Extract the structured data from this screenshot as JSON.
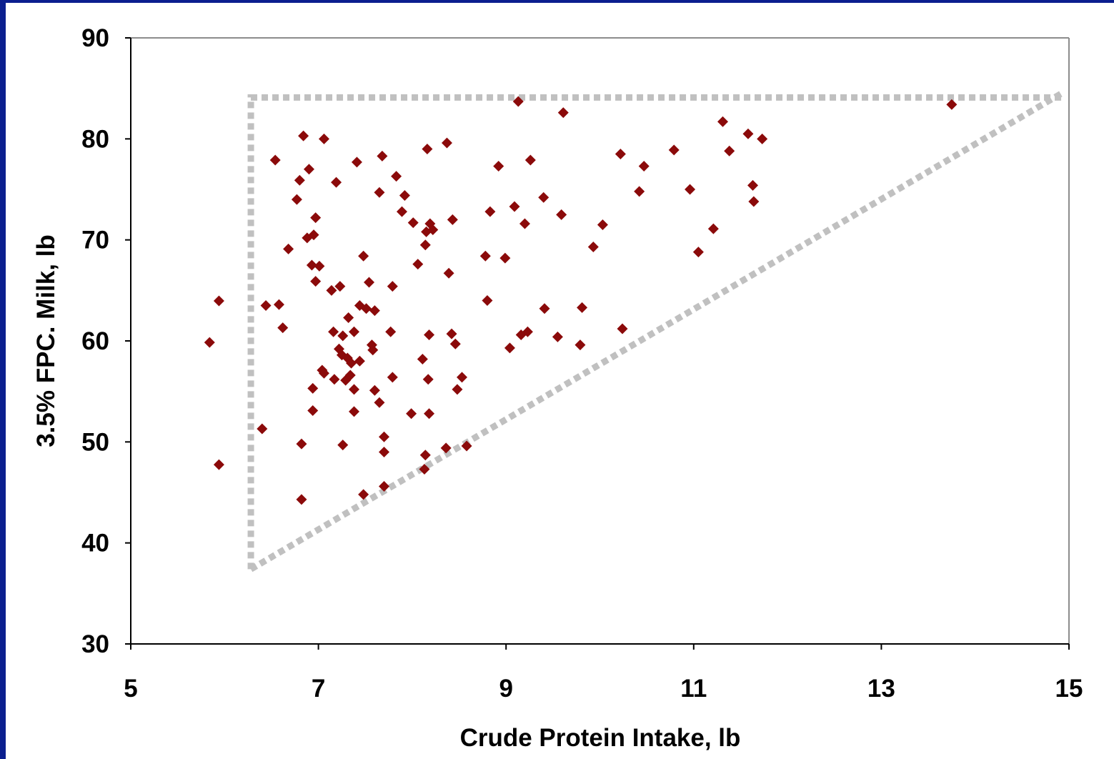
{
  "chart_data": {
    "type": "scatter",
    "x_label": "Crude Protein Intake, lb",
    "y_label": "3.5% FPC. Milk, lb",
    "xlim": [
      5,
      15
    ],
    "xticks": [
      5,
      7,
      9,
      11,
      13,
      15
    ],
    "ylim": [
      30,
      90
    ],
    "yticks": [
      30,
      40,
      50,
      60,
      70,
      80,
      90
    ],
    "color": "#8b0a0a",
    "x": [
      5.84,
      5.94,
      5.94,
      6.4,
      6.44,
      6.54,
      6.58,
      6.62,
      6.68,
      6.77,
      6.8,
      6.82,
      6.82,
      6.84,
      6.88,
      6.9,
      6.93,
      6.95,
      6.94,
      6.94,
      6.97,
      6.97,
      7.01,
      7.04,
      7.06,
      7.06,
      7.14,
      7.16,
      7.19,
      7.17,
      7.23,
      7.22,
      7.25,
      7.26,
      7.26,
      7.29,
      7.31,
      7.32,
      7.34,
      7.35,
      7.38,
      7.38,
      7.38,
      7.41,
      7.44,
      7.44,
      7.48,
      7.48,
      7.51,
      7.54,
      7.57,
      7.58,
      7.6,
      7.6,
      7.65,
      7.65,
      7.68,
      7.7,
      7.7,
      7.7,
      7.77,
      7.79,
      7.79,
      7.83,
      7.89,
      7.92,
      7.99,
      8.01,
      8.06,
      8.11,
      8.14,
      8.13,
      8.14,
      8.15,
      8.16,
      8.17,
      8.18,
      8.18,
      8.19,
      8.22,
      8.36,
      8.37,
      8.39,
      8.42,
      8.43,
      8.46,
      8.48,
      8.53,
      8.58,
      8.78,
      8.8,
      8.83,
      8.92,
      8.99,
      9.04,
      9.09,
      9.13,
      9.16,
      9.2,
      9.23,
      9.26,
      9.4,
      9.41,
      9.55,
      9.59,
      9.61,
      9.79,
      9.81,
      9.93,
      10.03,
      10.22,
      10.24,
      10.42,
      10.47,
      10.79,
      10.96,
      11.05,
      11.21,
      11.31,
      11.38,
      11.58,
      11.63,
      11.64,
      11.73,
      13.75
    ],
    "y": [
      59.85,
      63.96,
      47.75,
      51.3,
      63.5,
      77.9,
      63.6,
      61.3,
      69.1,
      74.0,
      75.9,
      49.8,
      44.3,
      80.3,
      70.2,
      77.0,
      67.5,
      70.5,
      55.3,
      53.1,
      72.2,
      65.9,
      67.4,
      57.1,
      80.0,
      56.8,
      65.0,
      60.9,
      75.7,
      56.2,
      65.4,
      59.2,
      58.6,
      60.5,
      49.7,
      56.1,
      58.3,
      62.3,
      56.6,
      57.8,
      60.9,
      55.2,
      53.0,
      77.7,
      58.0,
      63.5,
      68.4,
      44.8,
      63.2,
      65.8,
      59.6,
      59.1,
      63.0,
      55.1,
      74.7,
      53.9,
      78.3,
      50.5,
      49.0,
      45.6,
      60.9,
      65.4,
      56.4,
      76.3,
      72.8,
      74.4,
      52.8,
      71.7,
      67.6,
      58.2,
      48.7,
      47.3,
      69.5,
      70.8,
      79.0,
      56.2,
      60.6,
      52.8,
      71.6,
      71.0,
      49.4,
      79.6,
      66.7,
      60.7,
      72.0,
      59.7,
      55.2,
      56.4,
      49.6,
      68.4,
      64.0,
      72.8,
      77.3,
      68.2,
      59.3,
      73.3,
      83.7,
      60.6,
      71.6,
      60.9,
      77.9,
      74.2,
      63.2,
      60.4,
      72.5,
      82.6,
      59.6,
      63.3,
      69.3,
      71.5,
      78.5,
      61.2,
      74.8,
      77.3,
      78.9,
      75.0,
      68.8,
      71.1,
      81.7,
      78.8,
      80.5,
      75.4,
      73.8,
      80.0,
      83.4
    ],
    "guide_color": "#c0c0c0",
    "guide_lines": [
      {
        "x": [
          6.28,
          6.28,
          14.92
        ],
        "y": [
          37.4,
          84.1,
          84.1
        ]
      },
      {
        "x": [
          6.28,
          14.92
        ],
        "y": [
          37.4,
          84.5
        ]
      }
    ]
  }
}
